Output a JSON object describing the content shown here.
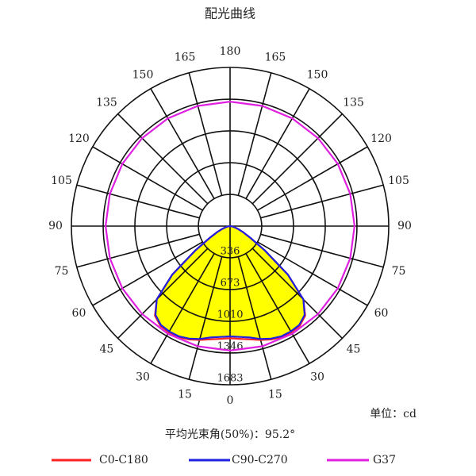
{
  "chart_data": {
    "type": "polar",
    "title": "配光曲线",
    "unit_note": "单位：cd",
    "beam_note": "平均光束角(50%)：95.2°",
    "rlim": [
      0,
      1683
    ],
    "rticks": [
      336,
      673,
      1010,
      1346,
      1683
    ],
    "angle_ticks": [
      0,
      15,
      30,
      45,
      60,
      75,
      90,
      105,
      120,
      135,
      150,
      165,
      180
    ],
    "fill_color": "#ffff00",
    "series": [
      {
        "name": "C0-C180",
        "color": "#ff2020",
        "theta": [
          -90,
          -85,
          -80,
          -75,
          -70,
          -65,
          -60,
          -55,
          -50,
          -45,
          -40,
          -35,
          -30,
          -25,
          -20,
          -15,
          -10,
          -5,
          0,
          5,
          10,
          15,
          20,
          25,
          30,
          35,
          40,
          45,
          50,
          55,
          60,
          65,
          70,
          75,
          80,
          85,
          90
        ],
        "values": [
          0,
          10,
          25,
          50,
          90,
          150,
          250,
          450,
          800,
          1100,
          1240,
          1290,
          1300,
          1300,
          1280,
          1250,
          1220,
          1200,
          1190,
          1200,
          1220,
          1250,
          1280,
          1300,
          1300,
          1290,
          1240,
          1100,
          800,
          450,
          250,
          150,
          90,
          50,
          25,
          10,
          0
        ]
      },
      {
        "name": "C90-C270",
        "color": "#2020e0",
        "theta": [
          -90,
          -85,
          -80,
          -75,
          -70,
          -65,
          -60,
          -55,
          -50,
          -45,
          -40,
          -35,
          -30,
          -25,
          -20,
          -15,
          -10,
          -5,
          0,
          5,
          10,
          15,
          20,
          25,
          30,
          35,
          40,
          45,
          50,
          55,
          60,
          65,
          70,
          75,
          80,
          85,
          90
        ],
        "values": [
          0,
          10,
          25,
          50,
          90,
          150,
          250,
          450,
          800,
          1100,
          1230,
          1280,
          1290,
          1290,
          1270,
          1240,
          1200,
          1180,
          1170,
          1180,
          1200,
          1240,
          1270,
          1290,
          1290,
          1280,
          1230,
          1100,
          800,
          450,
          250,
          150,
          90,
          50,
          25,
          10,
          0
        ]
      },
      {
        "name": "G37",
        "color": "#e020e0",
        "theta": [
          0,
          15,
          30,
          45,
          60,
          75,
          90,
          105,
          120,
          135,
          150,
          165,
          180,
          195,
          210,
          225,
          240,
          255,
          270,
          285,
          300,
          315,
          330,
          345
        ],
        "values": [
          1320,
          1320,
          1320,
          1320,
          1320,
          1320,
          1320,
          1320,
          1320,
          1320,
          1320,
          1320,
          1320,
          1320,
          1320,
          1320,
          1320,
          1320,
          1320,
          1320,
          1320,
          1320,
          1320,
          1320
        ]
      }
    ]
  }
}
